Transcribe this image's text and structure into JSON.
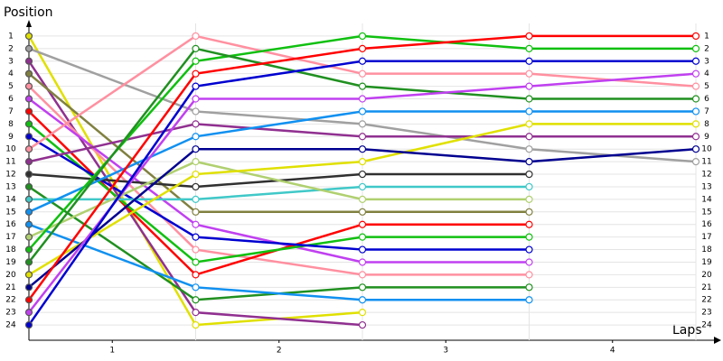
{
  "chart_data": {
    "type": "line",
    "title": "Position",
    "xlabel": "Laps",
    "x": [
      0,
      1,
      2,
      3,
      4
    ],
    "xlim": [
      0,
      4
    ],
    "xticks": [
      {
        "value": 0.5,
        "label": "1"
      },
      {
        "value": 1.5,
        "label": "2"
      },
      {
        "value": 2.5,
        "label": "3"
      },
      {
        "value": 3.5,
        "label": "4"
      }
    ],
    "ylim": [
      25,
      0
    ],
    "yticks": [
      1,
      2,
      3,
      4,
      5,
      6,
      7,
      8,
      9,
      10,
      11,
      12,
      13,
      14,
      15,
      16,
      17,
      18,
      19,
      20,
      21,
      22,
      23,
      24
    ],
    "grid": true,
    "series": [
      {
        "color": "#e0e000",
        "values": [
          1,
          24,
          23,
          null,
          null
        ]
      },
      {
        "color": "#a0a0a0",
        "values": [
          2,
          7,
          8,
          10,
          11
        ]
      },
      {
        "color": "#903090",
        "values": [
          3,
          23,
          24,
          null,
          null
        ]
      },
      {
        "color": "#808040",
        "values": [
          4,
          15,
          15,
          15,
          null
        ]
      },
      {
        "color": "#ff90a0",
        "values": [
          5,
          18,
          20,
          20,
          null
        ]
      },
      {
        "color": "#c040f0",
        "values": [
          6,
          16,
          19,
          19,
          null
        ]
      },
      {
        "color": "#ff0000",
        "values": [
          7,
          20,
          16,
          16,
          null
        ]
      },
      {
        "color": "#10c010",
        "values": [
          8,
          19,
          17,
          17,
          null
        ]
      },
      {
        "color": "#0000d0",
        "values": [
          9,
          17,
          18,
          18,
          null
        ]
      },
      {
        "color": "#ff90a0",
        "values": [
          10,
          1,
          4,
          4,
          5
        ]
      },
      {
        "color": "#903090",
        "values": [
          11,
          8,
          9,
          9,
          9
        ]
      },
      {
        "color": "#303030",
        "values": [
          12,
          13,
          12,
          12,
          null
        ]
      },
      {
        "color": "#209020",
        "values": [
          13,
          22,
          21,
          21,
          null
        ]
      },
      {
        "color": "#40c8c8",
        "values": [
          14,
          14,
          13,
          13,
          null
        ]
      },
      {
        "color": "#1090f0",
        "values": [
          15,
          9,
          7,
          7,
          7
        ]
      },
      {
        "color": "#1090f0",
        "values": [
          16,
          21,
          22,
          22,
          null
        ]
      },
      {
        "color": "#b0d070",
        "values": [
          17,
          11,
          14,
          14,
          null
        ]
      },
      {
        "color": "#10c010",
        "values": [
          18,
          3,
          1,
          2,
          2
        ]
      },
      {
        "color": "#209020",
        "values": [
          19,
          2,
          5,
          6,
          6
        ]
      },
      {
        "color": "#e0e000",
        "values": [
          20,
          12,
          11,
          8,
          8
        ]
      },
      {
        "color": "#000090",
        "values": [
          21,
          10,
          10,
          11,
          10
        ]
      },
      {
        "color": "#ff0000",
        "values": [
          22,
          4,
          2,
          1,
          1
        ]
      },
      {
        "color": "#c040f0",
        "values": [
          23,
          6,
          6,
          5,
          4
        ]
      },
      {
        "color": "#0000d0",
        "values": [
          24,
          5,
          3,
          3,
          3
        ]
      }
    ]
  }
}
